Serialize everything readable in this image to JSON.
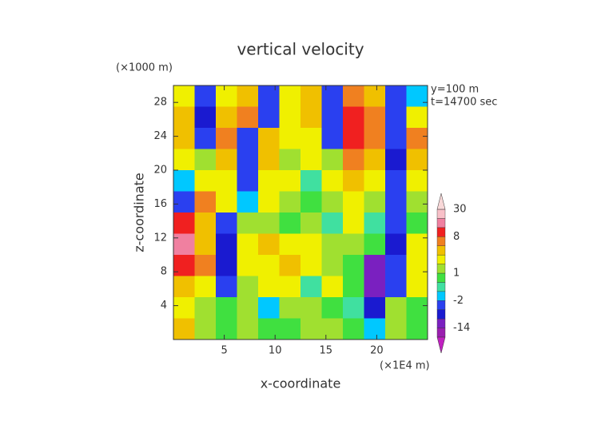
{
  "chart_data": {
    "type": "heatmap",
    "title": "vertical velocity",
    "y_unit": "(×1000 m)",
    "x_unit": "(×1E4 m)",
    "annotations": [
      "y=100 m",
      "t=14700 sec"
    ],
    "xlabel": "x-coordinate",
    "ylabel": "z-coordinate",
    "xlim": [
      0,
      25
    ],
    "ylim": [
      0,
      30
    ],
    "xticks": [
      5,
      10,
      15,
      20
    ],
    "yticks": [
      4,
      8,
      12,
      16,
      20,
      24,
      28
    ],
    "values": [
      [
        3,
        -6,
        2,
        5,
        -4,
        3,
        4,
        -3,
        6,
        4,
        -5,
        -2
      ],
      [
        4,
        -8,
        5,
        6,
        -3,
        2,
        5,
        -4,
        8,
        6,
        -6,
        3
      ],
      [
        5,
        -5,
        6,
        -4,
        4,
        3,
        2,
        -3,
        10,
        7,
        -4,
        6
      ],
      [
        2,
        1,
        4,
        -6,
        5,
        1,
        2,
        1,
        6,
        5,
        -8,
        4
      ],
      [
        -2,
        3,
        2,
        -5,
        3,
        2,
        -1,
        3,
        4,
        2,
        -6,
        2
      ],
      [
        -4,
        6,
        3,
        -2,
        2,
        1,
        0,
        1,
        3,
        1,
        -3,
        1
      ],
      [
        8,
        4,
        -6,
        1,
        1,
        0,
        1,
        -1,
        2,
        -1,
        -4,
        0
      ],
      [
        12,
        5,
        -8,
        3,
        4,
        2,
        2,
        1,
        1,
        0,
        -10,
        2
      ],
      [
        10,
        6,
        -10,
        2,
        3,
        4,
        2,
        1,
        0,
        -12,
        -6,
        3
      ],
      [
        5,
        3,
        -3,
        1,
        2,
        3,
        -1,
        2,
        0,
        -14,
        -5,
        2
      ],
      [
        2,
        1,
        0,
        1,
        -2,
        1,
        1,
        0,
        -1,
        -8,
        1,
        0
      ],
      [
        4,
        1,
        0,
        1,
        0,
        0,
        1,
        1,
        0,
        -2,
        1,
        0
      ]
    ],
    "colorbar": {
      "levels": [
        -30,
        -14,
        -10,
        -6,
        -2,
        -1,
        0,
        1,
        2,
        4,
        6,
        8,
        12,
        20,
        30
      ],
      "colors": [
        "#9b1fb0",
        "#7a20c0",
        "#1a1ad0",
        "#2a40f0",
        "#00c8ff",
        "#40e0a0",
        "#40e040",
        "#a0e030",
        "#f0f000",
        "#f0c000",
        "#f08020",
        "#f02020",
        "#f080a0",
        "#f8c0c8"
      ],
      "under_color": "#c020c0",
      "over_color": "#f8d8d8",
      "ticks": [
        -14,
        -2,
        1,
        8,
        30
      ]
    }
  }
}
